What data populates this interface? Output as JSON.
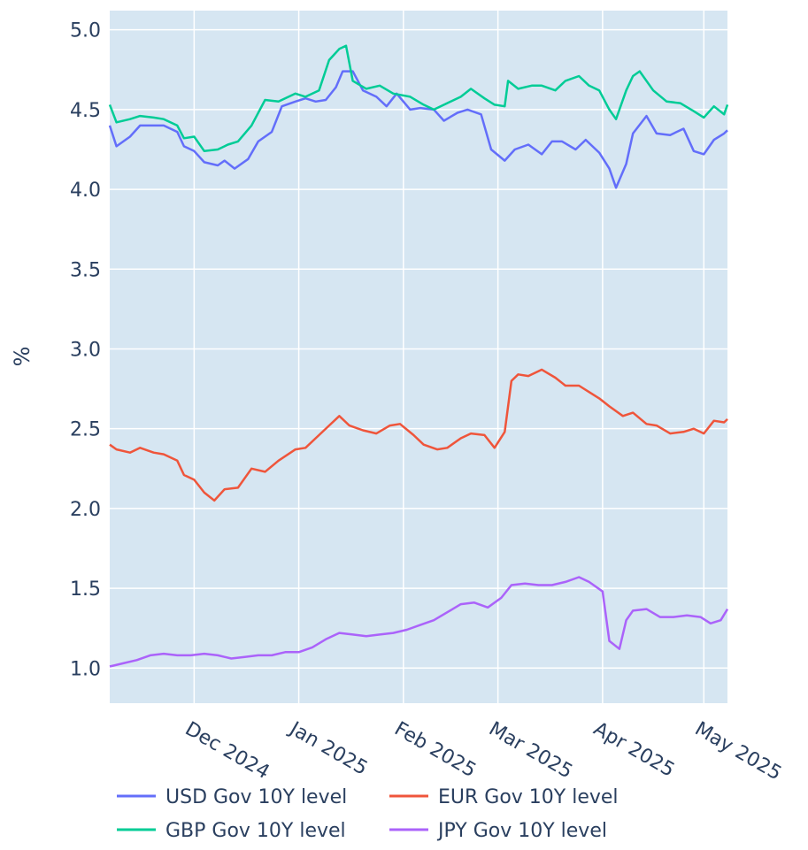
{
  "chart_data": {
    "type": "line",
    "title": "",
    "xlabel": "",
    "ylabel": "%",
    "x_range": [
      "2024-11-06",
      "2025-05-08"
    ],
    "ylim": [
      0.78,
      5.12
    ],
    "y_ticks": [
      1.0,
      1.5,
      2.0,
      2.5,
      3.0,
      3.5,
      4.0,
      4.5,
      5.0
    ],
    "y_tick_labels": [
      "1.0",
      "1.5",
      "2.0",
      "2.5",
      "3.0",
      "3.5",
      "4.0",
      "4.5",
      "5.0"
    ],
    "x_ticks": [
      "2024-12-01",
      "2025-01-01",
      "2025-02-01",
      "2025-03-01",
      "2025-04-01",
      "2025-05-01"
    ],
    "x_tick_labels": [
      "Dec 2024",
      "Jan 2025",
      "Feb 2025",
      "Mar 2025",
      "Apr 2025",
      "May 2025"
    ],
    "grid": true,
    "plot_background": "#d6e6f2",
    "legend_position": "bottom",
    "series": [
      {
        "name": "USD Gov 10Y level",
        "color": "#636efa",
        "points": [
          [
            "2024-11-06",
            4.4
          ],
          [
            "2024-11-08",
            4.27
          ],
          [
            "2024-11-12",
            4.33
          ],
          [
            "2024-11-15",
            4.4
          ],
          [
            "2024-11-19",
            4.4
          ],
          [
            "2024-11-22",
            4.4
          ],
          [
            "2024-11-26",
            4.36
          ],
          [
            "2024-11-28",
            4.27
          ],
          [
            "2024-12-01",
            4.24
          ],
          [
            "2024-12-04",
            4.17
          ],
          [
            "2024-12-08",
            4.15
          ],
          [
            "2024-12-10",
            4.18
          ],
          [
            "2024-12-13",
            4.13
          ],
          [
            "2024-12-17",
            4.19
          ],
          [
            "2024-12-20",
            4.3
          ],
          [
            "2024-12-24",
            4.36
          ],
          [
            "2024-12-27",
            4.52
          ],
          [
            "2024-12-31",
            4.55
          ],
          [
            "2025-01-03",
            4.57
          ],
          [
            "2025-01-06",
            4.55
          ],
          [
            "2025-01-09",
            4.56
          ],
          [
            "2025-01-12",
            4.64
          ],
          [
            "2025-01-14",
            4.74
          ],
          [
            "2025-01-17",
            4.74
          ],
          [
            "2025-01-20",
            4.62
          ],
          [
            "2025-01-24",
            4.58
          ],
          [
            "2025-01-27",
            4.52
          ],
          [
            "2025-01-30",
            4.6
          ],
          [
            "2025-02-03",
            4.5
          ],
          [
            "2025-02-06",
            4.51
          ],
          [
            "2025-02-10",
            4.5
          ],
          [
            "2025-02-13",
            4.43
          ],
          [
            "2025-02-17",
            4.48
          ],
          [
            "2025-02-20",
            4.5
          ],
          [
            "2025-02-24",
            4.47
          ],
          [
            "2025-02-27",
            4.25
          ],
          [
            "2025-03-03",
            4.18
          ],
          [
            "2025-03-06",
            4.25
          ],
          [
            "2025-03-10",
            4.28
          ],
          [
            "2025-03-14",
            4.22
          ],
          [
            "2025-03-17",
            4.3
          ],
          [
            "2025-03-20",
            4.3
          ],
          [
            "2025-03-24",
            4.25
          ],
          [
            "2025-03-27",
            4.31
          ],
          [
            "2025-03-31",
            4.23
          ],
          [
            "2025-04-03",
            4.13
          ],
          [
            "2025-04-05",
            4.01
          ],
          [
            "2025-04-08",
            4.16
          ],
          [
            "2025-04-10",
            4.35
          ],
          [
            "2025-04-14",
            4.46
          ],
          [
            "2025-04-17",
            4.35
          ],
          [
            "2025-04-21",
            4.34
          ],
          [
            "2025-04-25",
            4.38
          ],
          [
            "2025-04-28",
            4.24
          ],
          [
            "2025-05-01",
            4.22
          ],
          [
            "2025-05-04",
            4.31
          ],
          [
            "2025-05-07",
            4.35
          ],
          [
            "2025-05-08",
            4.37
          ]
        ]
      },
      {
        "name": "EUR Gov 10Y level",
        "color": "#ef553b",
        "points": [
          [
            "2024-11-06",
            2.4
          ],
          [
            "2024-11-08",
            2.37
          ],
          [
            "2024-11-12",
            2.35
          ],
          [
            "2024-11-15",
            2.38
          ],
          [
            "2024-11-19",
            2.35
          ],
          [
            "2024-11-22",
            2.34
          ],
          [
            "2024-11-26",
            2.3
          ],
          [
            "2024-11-28",
            2.21
          ],
          [
            "2024-12-01",
            2.18
          ],
          [
            "2024-12-04",
            2.1
          ],
          [
            "2024-12-07",
            2.05
          ],
          [
            "2024-12-10",
            2.12
          ],
          [
            "2024-12-14",
            2.13
          ],
          [
            "2024-12-18",
            2.25
          ],
          [
            "2024-12-22",
            2.23
          ],
          [
            "2024-12-26",
            2.3
          ],
          [
            "2024-12-31",
            2.37
          ],
          [
            "2025-01-03",
            2.38
          ],
          [
            "2025-01-07",
            2.46
          ],
          [
            "2025-01-10",
            2.52
          ],
          [
            "2025-01-13",
            2.58
          ],
          [
            "2025-01-16",
            2.52
          ],
          [
            "2025-01-20",
            2.49
          ],
          [
            "2025-01-24",
            2.47
          ],
          [
            "2025-01-28",
            2.52
          ],
          [
            "2025-01-31",
            2.53
          ],
          [
            "2025-02-04",
            2.46
          ],
          [
            "2025-02-07",
            2.4
          ],
          [
            "2025-02-11",
            2.37
          ],
          [
            "2025-02-14",
            2.38
          ],
          [
            "2025-02-18",
            2.44
          ],
          [
            "2025-02-21",
            2.47
          ],
          [
            "2025-02-25",
            2.46
          ],
          [
            "2025-02-28",
            2.38
          ],
          [
            "2025-03-03",
            2.48
          ],
          [
            "2025-03-05",
            2.8
          ],
          [
            "2025-03-07",
            2.84
          ],
          [
            "2025-03-10",
            2.83
          ],
          [
            "2025-03-14",
            2.87
          ],
          [
            "2025-03-18",
            2.82
          ],
          [
            "2025-03-21",
            2.77
          ],
          [
            "2025-03-25",
            2.77
          ],
          [
            "2025-03-28",
            2.73
          ],
          [
            "2025-03-31",
            2.69
          ],
          [
            "2025-04-03",
            2.64
          ],
          [
            "2025-04-07",
            2.58
          ],
          [
            "2025-04-10",
            2.6
          ],
          [
            "2025-04-14",
            2.53
          ],
          [
            "2025-04-17",
            2.52
          ],
          [
            "2025-04-21",
            2.47
          ],
          [
            "2025-04-25",
            2.48
          ],
          [
            "2025-04-28",
            2.5
          ],
          [
            "2025-05-01",
            2.47
          ],
          [
            "2025-05-04",
            2.55
          ],
          [
            "2025-05-07",
            2.54
          ],
          [
            "2025-05-08",
            2.56
          ]
        ]
      },
      {
        "name": "GBP Gov 10Y level",
        "color": "#00cc96",
        "points": [
          [
            "2024-11-06",
            4.53
          ],
          [
            "2024-11-08",
            4.42
          ],
          [
            "2024-11-12",
            4.44
          ],
          [
            "2024-11-15",
            4.46
          ],
          [
            "2024-11-19",
            4.45
          ],
          [
            "2024-11-22",
            4.44
          ],
          [
            "2024-11-26",
            4.4
          ],
          [
            "2024-11-28",
            4.32
          ],
          [
            "2024-12-01",
            4.33
          ],
          [
            "2024-12-04",
            4.24
          ],
          [
            "2024-12-08",
            4.25
          ],
          [
            "2024-12-11",
            4.28
          ],
          [
            "2024-12-14",
            4.3
          ],
          [
            "2024-12-18",
            4.4
          ],
          [
            "2024-12-22",
            4.56
          ],
          [
            "2024-12-26",
            4.55
          ],
          [
            "2024-12-31",
            4.6
          ],
          [
            "2025-01-03",
            4.58
          ],
          [
            "2025-01-07",
            4.62
          ],
          [
            "2025-01-10",
            4.81
          ],
          [
            "2025-01-13",
            4.88
          ],
          [
            "2025-01-15",
            4.9
          ],
          [
            "2025-01-17",
            4.68
          ],
          [
            "2025-01-21",
            4.63
          ],
          [
            "2025-01-25",
            4.65
          ],
          [
            "2025-01-29",
            4.6
          ],
          [
            "2025-02-03",
            4.58
          ],
          [
            "2025-02-07",
            4.53
          ],
          [
            "2025-02-10",
            4.5
          ],
          [
            "2025-02-14",
            4.54
          ],
          [
            "2025-02-18",
            4.58
          ],
          [
            "2025-02-21",
            4.63
          ],
          [
            "2025-02-25",
            4.57
          ],
          [
            "2025-02-28",
            4.53
          ],
          [
            "2025-03-03",
            4.52
          ],
          [
            "2025-03-04",
            4.68
          ],
          [
            "2025-03-07",
            4.63
          ],
          [
            "2025-03-11",
            4.65
          ],
          [
            "2025-03-14",
            4.65
          ],
          [
            "2025-03-18",
            4.62
          ],
          [
            "2025-03-21",
            4.68
          ],
          [
            "2025-03-25",
            4.71
          ],
          [
            "2025-03-28",
            4.65
          ],
          [
            "2025-03-31",
            4.62
          ],
          [
            "2025-04-03",
            4.5
          ],
          [
            "2025-04-05",
            4.44
          ],
          [
            "2025-04-08",
            4.62
          ],
          [
            "2025-04-10",
            4.71
          ],
          [
            "2025-04-12",
            4.74
          ],
          [
            "2025-04-16",
            4.62
          ],
          [
            "2025-04-20",
            4.55
          ],
          [
            "2025-04-24",
            4.54
          ],
          [
            "2025-04-28",
            4.49
          ],
          [
            "2025-05-01",
            4.45
          ],
          [
            "2025-05-04",
            4.52
          ],
          [
            "2025-05-07",
            4.47
          ],
          [
            "2025-05-08",
            4.53
          ]
        ]
      },
      {
        "name": "JPY Gov 10Y level",
        "color": "#ab63fa",
        "points": [
          [
            "2024-11-06",
            1.01
          ],
          [
            "2024-11-10",
            1.03
          ],
          [
            "2024-11-14",
            1.05
          ],
          [
            "2024-11-18",
            1.08
          ],
          [
            "2024-11-22",
            1.09
          ],
          [
            "2024-11-26",
            1.08
          ],
          [
            "2024-11-30",
            1.08
          ],
          [
            "2024-12-04",
            1.09
          ],
          [
            "2024-12-08",
            1.08
          ],
          [
            "2024-12-12",
            1.06
          ],
          [
            "2024-12-16",
            1.07
          ],
          [
            "2024-12-20",
            1.08
          ],
          [
            "2024-12-24",
            1.08
          ],
          [
            "2024-12-28",
            1.1
          ],
          [
            "2025-01-01",
            1.1
          ],
          [
            "2025-01-05",
            1.13
          ],
          [
            "2025-01-09",
            1.18
          ],
          [
            "2025-01-13",
            1.22
          ],
          [
            "2025-01-17",
            1.21
          ],
          [
            "2025-01-21",
            1.2
          ],
          [
            "2025-01-25",
            1.21
          ],
          [
            "2025-01-29",
            1.22
          ],
          [
            "2025-02-02",
            1.24
          ],
          [
            "2025-02-06",
            1.27
          ],
          [
            "2025-02-10",
            1.3
          ],
          [
            "2025-02-14",
            1.35
          ],
          [
            "2025-02-18",
            1.4
          ],
          [
            "2025-02-22",
            1.41
          ],
          [
            "2025-02-26",
            1.38
          ],
          [
            "2025-03-02",
            1.44
          ],
          [
            "2025-03-05",
            1.52
          ],
          [
            "2025-03-09",
            1.53
          ],
          [
            "2025-03-13",
            1.52
          ],
          [
            "2025-03-17",
            1.52
          ],
          [
            "2025-03-21",
            1.54
          ],
          [
            "2025-03-25",
            1.57
          ],
          [
            "2025-03-28",
            1.54
          ],
          [
            "2025-04-01",
            1.48
          ],
          [
            "2025-04-03",
            1.17
          ],
          [
            "2025-04-06",
            1.12
          ],
          [
            "2025-04-08",
            1.3
          ],
          [
            "2025-04-10",
            1.36
          ],
          [
            "2025-04-14",
            1.37
          ],
          [
            "2025-04-18",
            1.32
          ],
          [
            "2025-04-22",
            1.32
          ],
          [
            "2025-04-26",
            1.33
          ],
          [
            "2025-04-30",
            1.32
          ],
          [
            "2025-05-03",
            1.28
          ],
          [
            "2025-05-06",
            1.3
          ],
          [
            "2025-05-08",
            1.37
          ]
        ]
      }
    ]
  }
}
